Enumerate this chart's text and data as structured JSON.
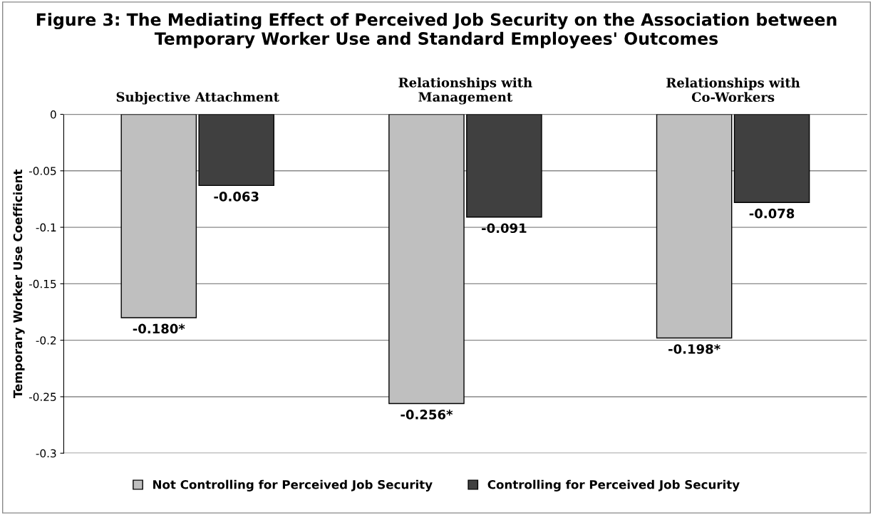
{
  "chart_data": {
    "type": "bar",
    "title": "Figure 3: The Mediating Effect of Perceived Job Security on the Association between\nTemporary Worker Use and Standard Employees' Outcomes",
    "ylabel": "Temporary Worker Use Coefficient",
    "categories": [
      "Subjective Attachment",
      "Relationships with\nManagement",
      "Relationships with\nCo-Workers"
    ],
    "series": [
      {
        "name": "Not Controlling for Perceived Job Security",
        "color": "#bfbfbf",
        "values": [
          -0.18,
          -0.256,
          -0.198
        ],
        "value_labels": [
          "-0.180*",
          "-0.256*",
          "-0.198*"
        ]
      },
      {
        "name": "Controlling for Perceived Job Security",
        "color": "#404040",
        "values": [
          -0.063,
          -0.091,
          -0.078
        ],
        "value_labels": [
          "-0.063",
          "-0.091",
          "-0.078"
        ]
      }
    ],
    "ylim": [
      -0.3,
      0
    ],
    "yticks": [
      0,
      -0.05,
      -0.1,
      -0.15,
      -0.2,
      -0.25,
      -0.3
    ],
    "grid": "y",
    "legend": "bottom"
  }
}
